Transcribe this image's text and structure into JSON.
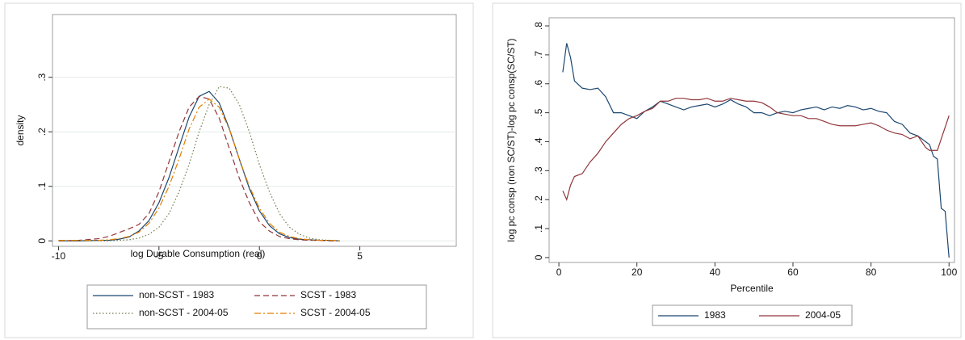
{
  "chart_data": [
    {
      "type": "line",
      "x_label": "log Durable Consumption (real)",
      "y_label": "density",
      "xlim": [
        -10.3,
        9.8
      ],
      "ylim": [
        -0.01,
        0.415
      ],
      "xticks": [
        -10,
        -5,
        0,
        5
      ],
      "yticks": [
        0,
        {
          "value": 0.1,
          "label": ".1"
        },
        {
          "value": 0.2,
          "label": ".2"
        },
        {
          "value": 0.3,
          "label": ".3"
        }
      ],
      "grid": true,
      "legend": "bottom",
      "legend_columns": 2,
      "x": [
        -10,
        -9,
        -8,
        -7.5,
        -7,
        -6.5,
        -6,
        -5.5,
        -5,
        -4.5,
        -4,
        -3.5,
        -3,
        -2.5,
        -2,
        -1.5,
        -1,
        -0.5,
        0,
        0.5,
        1,
        1.5,
        2,
        2.5,
        3,
        3.5,
        4
      ],
      "series": [
        {
          "name": "non-SCST - 1983",
          "color": "#1a476f",
          "dash": "solid",
          "values": [
            0,
            0,
            0.001,
            0.001,
            0.003,
            0.007,
            0.018,
            0.037,
            0.07,
            0.116,
            0.172,
            0.227,
            0.265,
            0.274,
            0.253,
            0.206,
            0.15,
            0.096,
            0.055,
            0.028,
            0.013,
            0.006,
            0.003,
            0.002,
            0.001,
            0.001,
            0
          ]
        },
        {
          "name": "SCST - 1983",
          "color": "#90353b",
          "dash": "dash",
          "values": [
            0,
            0.001,
            0.004,
            0.008,
            0.015,
            0.022,
            0.03,
            0.05,
            0.09,
            0.145,
            0.2,
            0.245,
            0.265,
            0.26,
            0.225,
            0.17,
            0.115,
            0.07,
            0.035,
            0.018,
            0.008,
            0.004,
            0.002,
            0.001,
            0.001,
            0,
            0
          ]
        },
        {
          "name": "non-SCST - 2004-05",
          "color": "#6e7a4a",
          "dash": "dot",
          "values": [
            0,
            0,
            0,
            0,
            0.001,
            0.002,
            0.005,
            0.012,
            0.025,
            0.05,
            0.09,
            0.14,
            0.2,
            0.25,
            0.283,
            0.28,
            0.25,
            0.2,
            0.14,
            0.09,
            0.05,
            0.025,
            0.012,
            0.005,
            0.002,
            0.001,
            0
          ]
        },
        {
          "name": "SCST - 2004-05",
          "color": "#e37e00",
          "dash": "dashdot",
          "values": [
            0.001,
            0.001,
            0.001,
            0.002,
            0.004,
            0.008,
            0.016,
            0.032,
            0.06,
            0.1,
            0.15,
            0.205,
            0.245,
            0.26,
            0.245,
            0.205,
            0.15,
            0.1,
            0.06,
            0.032,
            0.016,
            0.008,
            0.004,
            0.002,
            0.001,
            0.001,
            0
          ]
        }
      ]
    },
    {
      "type": "line",
      "x_label": "Percentile",
      "y_label": "log pc consp (non SC/ST)-log pc consp(SC/ST)",
      "xlim": [
        -2.5,
        101.4
      ],
      "ylim": [
        -0.017,
        0.828
      ],
      "xticks": [
        0,
        20,
        40,
        60,
        80,
        100
      ],
      "yticks": [
        0,
        {
          "value": 0.1,
          "label": ".1"
        },
        {
          "value": 0.2,
          "label": ".2"
        },
        {
          "value": 0.3,
          "label": ".3"
        },
        {
          "value": 0.4,
          "label": ".4"
        },
        {
          "value": 0.5,
          "label": ".5"
        },
        {
          "value": 0.6,
          "label": ".6"
        },
        {
          "value": 0.7,
          "label": ".7"
        },
        {
          "value": 0.8,
          "label": ".8"
        }
      ],
      "grid": false,
      "legend": "bottom",
      "legend_columns": 2,
      "x": [
        1,
        2,
        3,
        4,
        6,
        8,
        10,
        12,
        14,
        16,
        18,
        20,
        22,
        24,
        26,
        28,
        30,
        32,
        34,
        36,
        38,
        40,
        42,
        44,
        46,
        48,
        50,
        52,
        54,
        56,
        58,
        60,
        62,
        64,
        66,
        68,
        70,
        72,
        74,
        76,
        78,
        80,
        82,
        84,
        86,
        88,
        90,
        92,
        94,
        95,
        96,
        97,
        98,
        99,
        100
      ],
      "series": [
        {
          "name": "1983",
          "color": "#1a476f",
          "dash": "solid",
          "values": [
            0.64,
            0.74,
            0.69,
            0.61,
            0.585,
            0.58,
            0.585,
            0.555,
            0.5,
            0.5,
            0.49,
            0.48,
            0.505,
            0.52,
            0.54,
            0.53,
            0.52,
            0.51,
            0.52,
            0.525,
            0.53,
            0.52,
            0.53,
            0.545,
            0.53,
            0.52,
            0.5,
            0.5,
            0.49,
            0.5,
            0.505,
            0.5,
            0.51,
            0.515,
            0.52,
            0.51,
            0.52,
            0.515,
            0.525,
            0.52,
            0.51,
            0.515,
            0.505,
            0.5,
            0.47,
            0.46,
            0.43,
            0.42,
            0.4,
            0.39,
            0.35,
            0.34,
            0.17,
            0.16,
            0
          ]
        },
        {
          "name": "2004-05",
          "color": "#90353b",
          "dash": "solid",
          "values": [
            0.23,
            0.2,
            0.25,
            0.28,
            0.29,
            0.33,
            0.36,
            0.4,
            0.43,
            0.46,
            0.48,
            0.49,
            0.505,
            0.515,
            0.54,
            0.54,
            0.55,
            0.55,
            0.545,
            0.545,
            0.55,
            0.54,
            0.54,
            0.55,
            0.545,
            0.54,
            0.54,
            0.535,
            0.52,
            0.5,
            0.495,
            0.49,
            0.49,
            0.48,
            0.48,
            0.47,
            0.46,
            0.455,
            0.455,
            0.455,
            0.46,
            0.465,
            0.455,
            0.44,
            0.43,
            0.425,
            0.41,
            0.42,
            0.38,
            0.37,
            0.37,
            0.37,
            0.41,
            0.45,
            0.49
          ]
        }
      ]
    }
  ]
}
